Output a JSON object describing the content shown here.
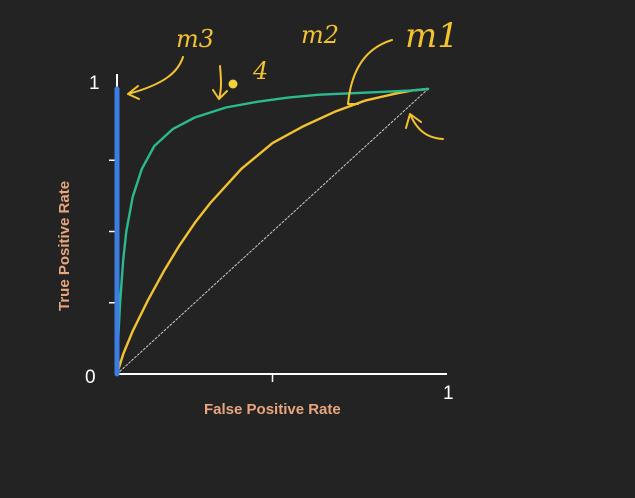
{
  "chart_data": {
    "type": "line",
    "xlabel": "False Positive Rate",
    "ylabel": "True Positive Rate",
    "xlim": [
      0,
      1
    ],
    "ylim": [
      0,
      1
    ],
    "x_tick_labels": [
      "0",
      "1"
    ],
    "y_tick_labels": [
      "1"
    ],
    "x_ticks": [
      0.5
    ],
    "y_ticks": [
      0.25,
      0.5,
      0.75
    ],
    "grid": false,
    "legend": "none",
    "series": [
      {
        "id": "blue",
        "color": "#3b7de0",
        "x": [
          0,
          0,
          0
        ],
        "y": [
          0,
          0.5,
          1
        ]
      },
      {
        "id": "green",
        "color": "#2cb98f",
        "x": [
          0,
          0.005,
          0.01,
          0.02,
          0.03,
          0.05,
          0.08,
          0.12,
          0.18,
          0.25,
          0.35,
          0.45,
          0.55,
          0.65,
          0.75,
          0.85,
          0.95,
          1.0
        ],
        "y": [
          0,
          0.15,
          0.25,
          0.4,
          0.5,
          0.62,
          0.72,
          0.8,
          0.86,
          0.9,
          0.935,
          0.955,
          0.97,
          0.98,
          0.985,
          0.99,
          0.995,
          1.0
        ]
      },
      {
        "id": "yellow",
        "color": "#f2c230",
        "x": [
          0,
          0.02,
          0.05,
          0.1,
          0.15,
          0.2,
          0.25,
          0.3,
          0.4,
          0.5,
          0.6,
          0.7,
          0.8,
          0.9,
          0.95,
          1.0
        ],
        "y": [
          0,
          0.07,
          0.15,
          0.26,
          0.36,
          0.45,
          0.53,
          0.6,
          0.72,
          0.81,
          0.87,
          0.92,
          0.96,
          0.985,
          0.995,
          1.0
        ]
      },
      {
        "id": "diagonal",
        "color": "#cccccc",
        "dashed": true,
        "x": [
          0,
          1
        ],
        "y": [
          0,
          1
        ]
      }
    ],
    "annotations": [
      "m3",
      "m2",
      "m1",
      "4"
    ]
  },
  "colors": {
    "background": "#232323",
    "axis": "#ffffff",
    "axis_label": "#e8a57e",
    "annotation": "#f2c230"
  }
}
